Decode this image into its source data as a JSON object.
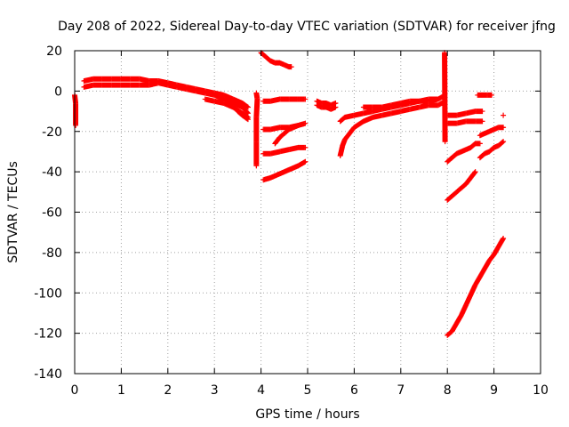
{
  "chart_data": {
    "type": "scatter",
    "title": "Day 208 of 2022, Sidereal Day-to-day VTEC variation (SDTVAR) for receiver jfng",
    "xlabel": "GPS time / hours",
    "ylabel": "SDTVAR / TECUs",
    "xlim": [
      0,
      10
    ],
    "ylim": [
      -140,
      20
    ],
    "xticks": [
      0,
      1,
      2,
      3,
      4,
      5,
      6,
      7,
      8,
      9,
      10
    ],
    "xtick_labels": [
      "0",
      "1",
      "2",
      "3",
      "4",
      "5",
      "6",
      "7",
      "8",
      "9",
      "10"
    ],
    "yticks": [
      -140,
      -120,
      -100,
      -80,
      -60,
      -40,
      -20,
      0,
      20
    ],
    "ytick_labels": [
      "-140",
      "-120",
      "-100",
      "-80",
      "-60",
      "-40",
      "-20",
      "0",
      "20"
    ],
    "grid": true,
    "marker": "+",
    "color": "#ff0000",
    "series": [
      {
        "points": [
          [
            0.0,
            -2
          ],
          [
            0.02,
            -6
          ],
          [
            0.02,
            -17
          ]
        ]
      },
      {
        "points": [
          [
            0.2,
            5
          ],
          [
            0.4,
            6
          ],
          [
            0.6,
            6
          ],
          [
            0.8,
            6
          ],
          [
            1.0,
            6
          ],
          [
            1.2,
            6
          ],
          [
            1.4,
            6
          ],
          [
            1.6,
            5
          ],
          [
            1.8,
            5
          ],
          [
            2.0,
            4
          ],
          [
            2.2,
            3
          ],
          [
            2.4,
            2
          ],
          [
            2.6,
            1
          ],
          [
            2.8,
            0
          ],
          [
            3.0,
            -1
          ],
          [
            3.2,
            -2
          ],
          [
            3.4,
            -4
          ],
          [
            3.6,
            -6
          ],
          [
            3.72,
            -8
          ]
        ]
      },
      {
        "points": [
          [
            0.2,
            2
          ],
          [
            0.4,
            3
          ],
          [
            0.6,
            3
          ],
          [
            0.8,
            3
          ],
          [
            1.0,
            3
          ],
          [
            1.2,
            3
          ],
          [
            1.4,
            3
          ],
          [
            1.6,
            3
          ],
          [
            1.8,
            4
          ],
          [
            2.0,
            3
          ],
          [
            2.2,
            2
          ],
          [
            2.4,
            1
          ],
          [
            2.6,
            0
          ],
          [
            2.8,
            -1
          ],
          [
            3.0,
            -2
          ],
          [
            3.2,
            -4
          ],
          [
            3.4,
            -6
          ],
          [
            3.6,
            -8
          ],
          [
            3.72,
            -11
          ]
        ]
      },
      {
        "points": [
          [
            2.8,
            -4
          ],
          [
            3.0,
            -5
          ],
          [
            3.2,
            -6
          ],
          [
            3.4,
            -8
          ],
          [
            3.6,
            -11
          ],
          [
            3.72,
            -13
          ]
        ]
      },
      {
        "points": [
          [
            3.5,
            -10
          ],
          [
            3.6,
            -12
          ],
          [
            3.72,
            -14
          ]
        ]
      },
      {
        "points": [
          [
            3.9,
            -1
          ],
          [
            3.92,
            -4
          ],
          [
            3.9,
            -13
          ],
          [
            3.9,
            -25
          ],
          [
            3.9,
            -37
          ]
        ]
      },
      {
        "points": [
          [
            4.0,
            19
          ],
          [
            4.1,
            17
          ],
          [
            4.2,
            15
          ],
          [
            4.3,
            14
          ],
          [
            4.4,
            14
          ],
          [
            4.5,
            13
          ],
          [
            4.6,
            12
          ],
          [
            4.65,
            12
          ]
        ]
      },
      {
        "points": [
          [
            4.05,
            -5
          ],
          [
            4.2,
            -5
          ],
          [
            4.4,
            -4
          ],
          [
            4.6,
            -4
          ],
          [
            4.8,
            -4
          ],
          [
            4.95,
            -4
          ]
        ]
      },
      {
        "points": [
          [
            4.05,
            -19
          ],
          [
            4.2,
            -19
          ],
          [
            4.4,
            -18
          ],
          [
            4.6,
            -18
          ],
          [
            4.8,
            -17
          ],
          [
            4.95,
            -16
          ]
        ]
      },
      {
        "points": [
          [
            4.3,
            -26
          ],
          [
            4.4,
            -23
          ],
          [
            4.5,
            -21
          ],
          [
            4.6,
            -19
          ],
          [
            4.7,
            -18
          ],
          [
            4.8,
            -17
          ]
        ]
      },
      {
        "points": [
          [
            4.05,
            -31
          ],
          [
            4.2,
            -31
          ],
          [
            4.4,
            -30
          ],
          [
            4.6,
            -29
          ],
          [
            4.8,
            -28
          ],
          [
            4.95,
            -28
          ]
        ]
      },
      {
        "points": [
          [
            4.05,
            -44
          ],
          [
            4.2,
            -43
          ],
          [
            4.4,
            -41
          ],
          [
            4.6,
            -39
          ],
          [
            4.8,
            -37
          ],
          [
            4.95,
            -35
          ]
        ]
      },
      {
        "points": [
          [
            5.2,
            -5
          ],
          [
            5.3,
            -6
          ],
          [
            5.4,
            -6
          ],
          [
            5.5,
            -7
          ],
          [
            5.6,
            -6
          ]
        ]
      },
      {
        "points": [
          [
            5.2,
            -7
          ],
          [
            5.3,
            -8
          ],
          [
            5.4,
            -8
          ],
          [
            5.5,
            -9
          ],
          [
            5.6,
            -8
          ]
        ]
      },
      {
        "points": [
          [
            5.7,
            -15
          ],
          [
            5.8,
            -13
          ],
          [
            6.0,
            -12
          ],
          [
            6.2,
            -11
          ],
          [
            6.4,
            -10
          ],
          [
            6.6,
            -9
          ],
          [
            6.8,
            -8
          ],
          [
            7.0,
            -7
          ],
          [
            7.2,
            -6
          ],
          [
            7.4,
            -5
          ],
          [
            7.6,
            -5
          ],
          [
            7.8,
            -4
          ],
          [
            7.88,
            -3
          ]
        ]
      },
      {
        "points": [
          [
            5.7,
            -32
          ],
          [
            5.75,
            -27
          ],
          [
            5.8,
            -24
          ],
          [
            5.9,
            -21
          ],
          [
            6.0,
            -18
          ],
          [
            6.2,
            -15
          ],
          [
            6.4,
            -13
          ],
          [
            6.6,
            -12
          ],
          [
            6.8,
            -11
          ],
          [
            7.0,
            -10
          ],
          [
            7.2,
            -9
          ],
          [
            7.4,
            -8
          ],
          [
            7.6,
            -7
          ],
          [
            7.8,
            -7
          ],
          [
            7.88,
            -6
          ]
        ]
      },
      {
        "points": [
          [
            6.2,
            -8
          ],
          [
            6.4,
            -8
          ],
          [
            6.6,
            -8
          ],
          [
            6.8,
            -7
          ],
          [
            7.0,
            -6
          ],
          [
            7.2,
            -5
          ],
          [
            7.4,
            -5
          ],
          [
            7.6,
            -4
          ],
          [
            7.8,
            -4
          ]
        ]
      },
      {
        "points": [
          [
            7.94,
            19
          ],
          [
            7.95,
            -25
          ]
        ]
      },
      {
        "points": [
          [
            8.0,
            -12
          ],
          [
            8.2,
            -12
          ],
          [
            8.4,
            -11
          ],
          [
            8.6,
            -10
          ],
          [
            8.75,
            -10
          ]
        ]
      },
      {
        "points": [
          [
            8.0,
            -16
          ],
          [
            8.2,
            -16
          ],
          [
            8.4,
            -15
          ],
          [
            8.6,
            -15
          ],
          [
            8.75,
            -15
          ]
        ]
      },
      {
        "points": [
          [
            8.0,
            -54
          ],
          [
            8.1,
            -52
          ],
          [
            8.2,
            -50
          ],
          [
            8.3,
            -48
          ],
          [
            8.4,
            -46
          ],
          [
            8.5,
            -43
          ],
          [
            8.6,
            -40
          ]
        ]
      },
      {
        "points": [
          [
            8.0,
            -35
          ],
          [
            8.1,
            -33
          ],
          [
            8.2,
            -31
          ],
          [
            8.3,
            -30
          ],
          [
            8.4,
            -29
          ],
          [
            8.5,
            -28
          ],
          [
            8.6,
            -26
          ],
          [
            8.7,
            -26
          ]
        ]
      },
      {
        "points": [
          [
            8.0,
            -121
          ],
          [
            8.1,
            -119
          ],
          [
            8.2,
            -115
          ],
          [
            8.3,
            -111
          ],
          [
            8.4,
            -106
          ],
          [
            8.5,
            -101
          ],
          [
            8.6,
            -96
          ],
          [
            8.7,
            -92
          ],
          [
            8.8,
            -88
          ],
          [
            8.9,
            -84
          ],
          [
            9.0,
            -81
          ],
          [
            9.1,
            -77
          ],
          [
            9.2,
            -73
          ]
        ]
      },
      {
        "points": [
          [
            8.65,
            -2
          ],
          [
            8.75,
            -2
          ],
          [
            8.85,
            -2
          ],
          [
            8.95,
            -2
          ]
        ]
      },
      {
        "points": [
          [
            8.7,
            -22
          ],
          [
            8.8,
            -21
          ],
          [
            8.9,
            -20
          ],
          [
            9.0,
            -19
          ],
          [
            9.1,
            -18
          ],
          [
            9.2,
            -18
          ]
        ]
      },
      {
        "points": [
          [
            8.7,
            -33
          ],
          [
            8.8,
            -31
          ],
          [
            8.9,
            -30
          ],
          [
            9.0,
            -28
          ],
          [
            9.1,
            -27
          ],
          [
            9.2,
            -25
          ]
        ]
      },
      {
        "points": [
          [
            9.2,
            -12
          ]
        ]
      }
    ]
  }
}
